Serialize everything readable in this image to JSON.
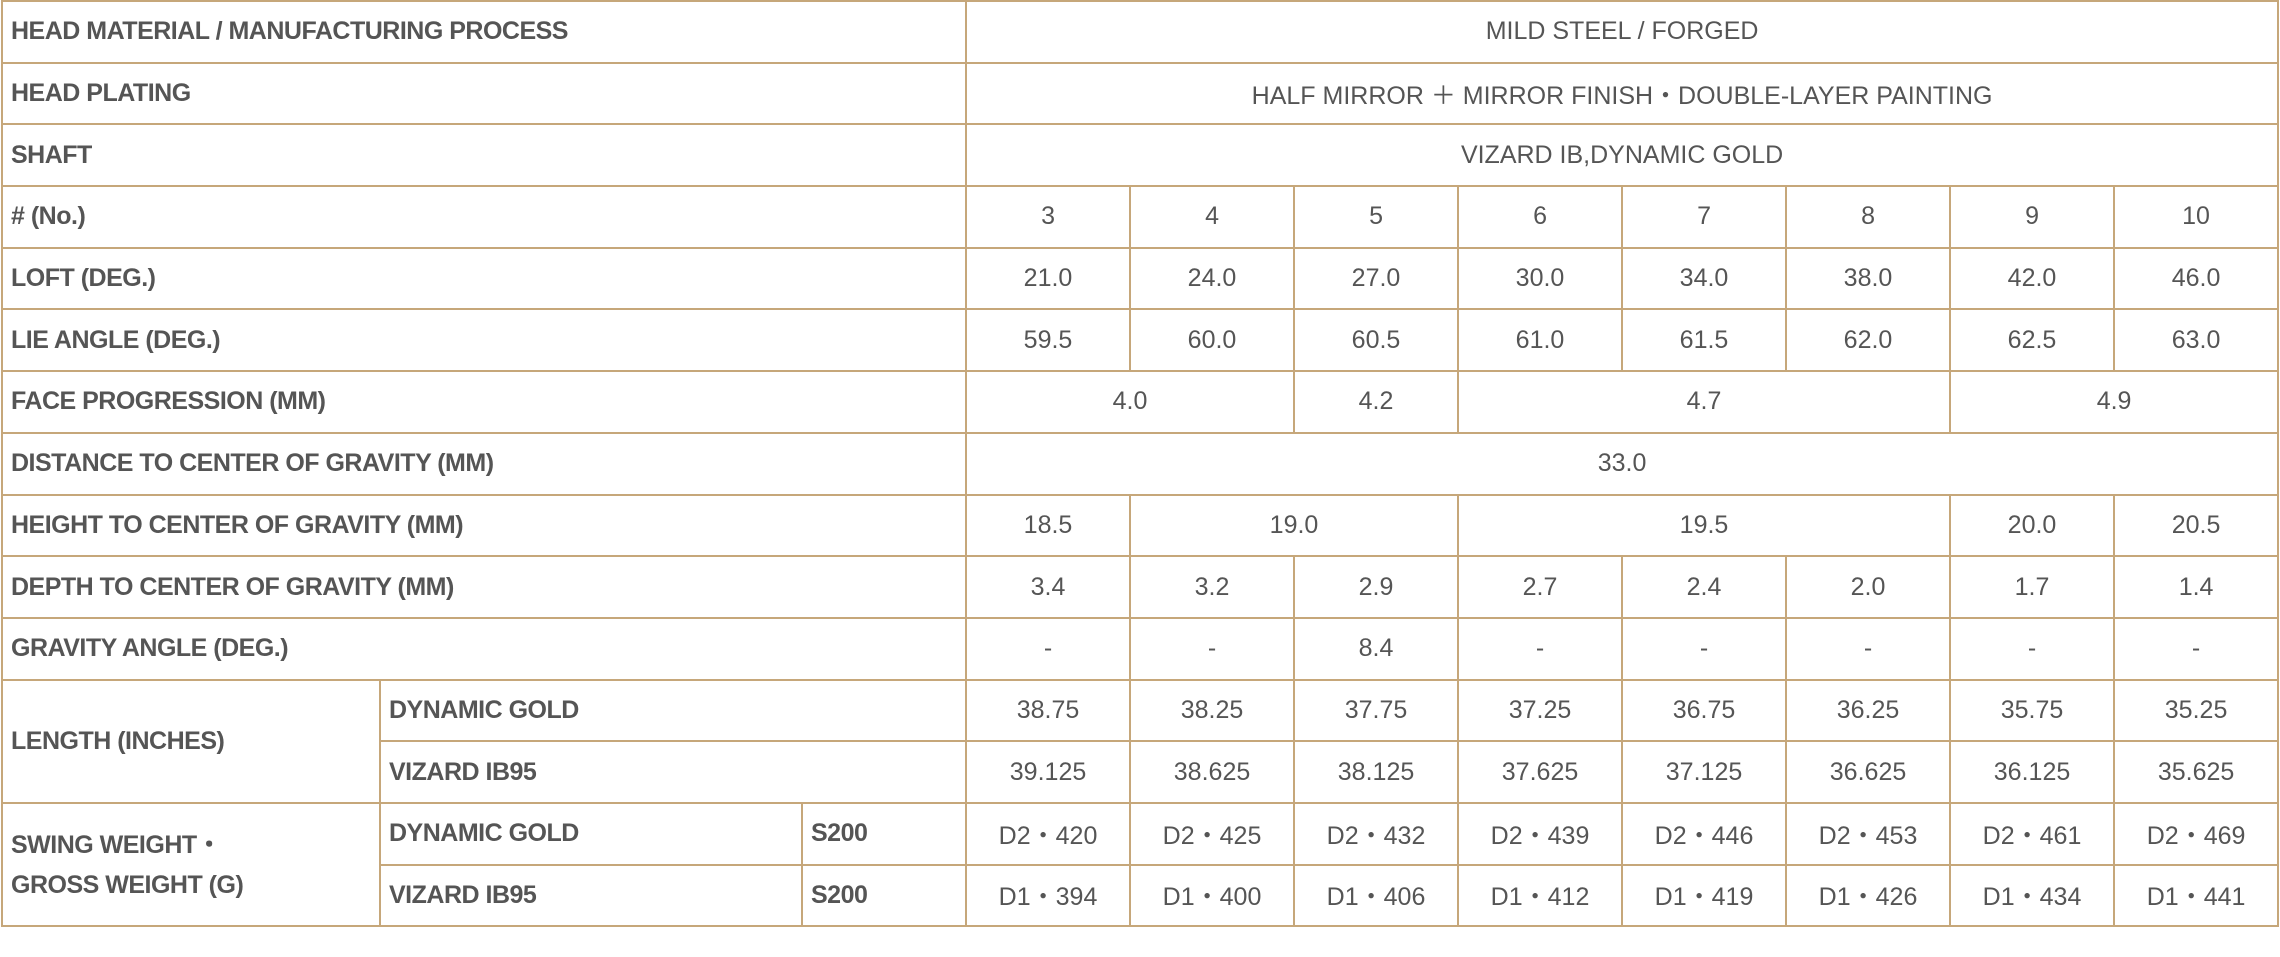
{
  "table": {
    "rows": [
      {
        "label": "HEAD MATERIAL / MANUFACTURING PROCESS",
        "values": [
          "MILD STEEL / FORGED"
        ]
      },
      {
        "label": "HEAD PLATING",
        "values": [
          "HALF MIRROR ＋ MIRROR FINISH・DOUBLE-LAYER PAINTING"
        ]
      },
      {
        "label": "SHAFT",
        "values": [
          "VIZARD IB,DYNAMIC GOLD"
        ]
      },
      {
        "label": "# (No.)",
        "values": [
          "3",
          "4",
          "5",
          "6",
          "7",
          "8",
          "9",
          "10"
        ]
      },
      {
        "label": "LOFT (DEG.)",
        "values": [
          "21.0",
          "24.0",
          "27.0",
          "30.0",
          "34.0",
          "38.0",
          "42.0",
          "46.0"
        ]
      },
      {
        "label": "LIE ANGLE (DEG.)",
        "values": [
          "59.5",
          "60.0",
          "60.5",
          "61.0",
          "61.5",
          "62.0",
          "62.5",
          "63.0"
        ]
      },
      {
        "label": "FACE PROGRESSION (MM)",
        "values": [
          "4.0",
          "4.2",
          "4.7",
          "4.9"
        ]
      },
      {
        "label": "DISTANCE TO CENTER OF GRAVITY (MM)",
        "values": [
          "33.0"
        ]
      },
      {
        "label": "HEIGHT TO CENTER OF GRAVITY (MM)",
        "values": [
          "18.5",
          "19.0",
          "19.5",
          "20.0",
          "20.5"
        ]
      },
      {
        "label": "DEPTH TO CENTER OF GRAVITY (MM)",
        "values": [
          "3.4",
          "3.2",
          "2.9",
          "2.7",
          "2.4",
          "2.0",
          "1.7",
          "1.4"
        ]
      },
      {
        "label": "GRAVITY ANGLE (DEG.)",
        "values": [
          "-",
          "-",
          "8.4",
          "-",
          "-",
          "-",
          "-",
          "-"
        ]
      }
    ],
    "length": {
      "label": "LENGTH (INCHES)",
      "sub": [
        {
          "shaft": "DYNAMIC GOLD",
          "values": [
            "38.75",
            "38.25",
            "37.75",
            "37.25",
            "36.75",
            "36.25",
            "35.75",
            "35.25"
          ]
        },
        {
          "shaft": "VIZARD IB95",
          "values": [
            "39.125",
            "38.625",
            "38.125",
            "37.625",
            "37.125",
            "36.625",
            "36.125",
            "35.625"
          ]
        }
      ]
    },
    "swing": {
      "label_line1": "SWING WEIGHT・",
      "label_line2": "GROSS WEIGHT (G)",
      "sub": [
        {
          "shaft": "DYNAMIC GOLD",
          "flex": "S200",
          "values": [
            "D2・420",
            "D2・425",
            "D2・432",
            "D2・439",
            "D2・446",
            "D2・453",
            "D2・461",
            "D2・469"
          ]
        },
        {
          "shaft": "VIZARD IB95",
          "flex": "S200",
          "values": [
            "D1・394",
            "D1・400",
            "D1・406",
            "D1・412",
            "D1・419",
            "D1・426",
            "D1・434",
            "D1・441"
          ]
        }
      ]
    }
  },
  "colors": {
    "border": "#c6a77a",
    "text": "#555555"
  }
}
